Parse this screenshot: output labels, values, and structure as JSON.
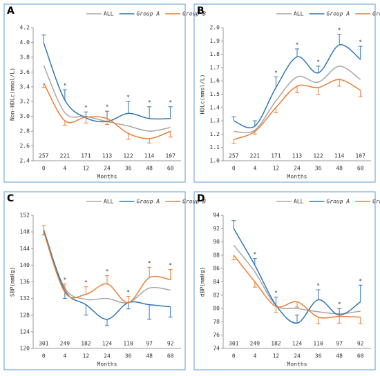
{
  "chart_data": [
    {
      "type": "line",
      "panel": "A",
      "ylabel": "Non-HDLc(mmol/L)",
      "xlabel": "Months",
      "categories": [
        "0",
        "4",
        "12",
        "24",
        "36",
        "48",
        "60"
      ],
      "n": [
        257,
        221,
        171,
        113,
        122,
        114,
        107
      ],
      "significance_marker": "*",
      "significant": [
        false,
        true,
        true,
        true,
        true,
        true,
        true
      ],
      "ylim": [
        2.4,
        4.2
      ],
      "yticks": [
        2.4,
        2.6,
        2.8,
        {
          "value": 3,
          "label": "3.0"
        },
        3.2,
        3.4,
        3.6,
        3.8,
        {
          "value": 4,
          "label": "4.0"
        },
        4.2
      ],
      "series": [
        {
          "name": "ALL",
          "color": "#a6a6a6",
          "values": [
            3.69,
            3.05,
            3.0,
            2.93,
            2.87,
            2.8,
            2.85
          ]
        },
        {
          "name": "Group A",
          "color": "#2e75b6",
          "values": [
            3.99,
            3.22,
            2.98,
            2.93,
            3.04,
            2.97,
            2.97
          ],
          "errors": [
            0.11,
            0.14,
            0.08,
            0.14,
            0.16,
            0.16,
            0.16
          ],
          "error_direction": "up"
        },
        {
          "name": "Group B",
          "color": "#ed7d31",
          "values": [
            3.45,
            2.94,
            2.99,
            2.97,
            2.77,
            2.7,
            2.8
          ],
          "errors": [
            0.06,
            0.06,
            0.08,
            0.08,
            0.08,
            0.06,
            0.08
          ],
          "error_direction": "down"
        }
      ]
    },
    {
      "type": "line",
      "panel": "B",
      "ylabel": "HDLc(mmol/L)",
      "xlabel": "Months",
      "categories": [
        "0",
        "4",
        "12",
        "24",
        "36",
        "48",
        "60"
      ],
      "n": [
        257,
        221,
        171,
        113,
        122,
        114,
        107
      ],
      "significance_marker": "*",
      "significant": [
        false,
        false,
        true,
        true,
        true,
        true,
        true
      ],
      "ylim": [
        1.0,
        2.0
      ],
      "yticks": [
        {
          "value": 1,
          "label": "1.0"
        },
        1.1,
        1.2,
        1.3,
        1.4,
        1.5,
        1.6,
        1.7,
        1.8,
        1.9,
        {
          "value": 2,
          "label": "2.0"
        }
      ],
      "series": [
        {
          "name": "ALL",
          "color": "#a6a6a6",
          "values": [
            1.22,
            1.23,
            1.45,
            1.63,
            1.59,
            1.71,
            1.61
          ]
        },
        {
          "name": "Group A",
          "color": "#2e75b6",
          "values": [
            1.3,
            1.26,
            1.55,
            1.78,
            1.66,
            1.87,
            1.76
          ],
          "errors": [
            0.03,
            0.04,
            0.08,
            0.06,
            0.05,
            0.08,
            0.1
          ],
          "error_direction": "up"
        },
        {
          "name": "Group B",
          "color": "#ed7d31",
          "values": [
            1.16,
            1.22,
            1.4,
            1.56,
            1.55,
            1.61,
            1.53
          ],
          "errors": [
            0.03,
            0.02,
            0.04,
            0.05,
            0.05,
            0.05,
            0.05
          ],
          "error_direction": "down"
        }
      ]
    },
    {
      "type": "line",
      "panel": "C",
      "ylabel": "SBP(mmHg)",
      "xlabel": "Months",
      "categories": [
        "0",
        "4",
        "12",
        "24",
        "36",
        "48",
        "60"
      ],
      "n": [
        301,
        249,
        182,
        124,
        110,
        97,
        92
      ],
      "significance_marker": "*",
      "significant": [
        false,
        true,
        true,
        true,
        true,
        true,
        true
      ],
      "ylim": [
        120,
        152
      ],
      "yticks": [
        120,
        124,
        128,
        132,
        136,
        140,
        144,
        148,
        152
      ],
      "series": [
        {
          "name": "ALL",
          "color": "#a6a6a6",
          "values": [
            148,
            134.5,
            131.8,
            132,
            131,
            134.5,
            134
          ]
        },
        {
          "name": "Group A",
          "color": "#2e75b6",
          "values": [
            148.5,
            134,
            130.5,
            127,
            131,
            130.5,
            130
          ],
          "errors": [
            1.2,
            2.0,
            2.5,
            1.5,
            1.5,
            3.5,
            2.5
          ],
          "error_direction": "down"
        },
        {
          "name": "Group B",
          "color": "#ed7d31",
          "values": [
            148,
            133.5,
            133,
            135.5,
            131,
            137,
            136.5
          ],
          "errors": [
            1.5,
            2.0,
            1.8,
            2.0,
            1.5,
            2.5,
            2.5
          ],
          "error_direction": "up"
        }
      ]
    },
    {
      "type": "line",
      "panel": "D",
      "ylabel": "dBP(mmHg)",
      "xlabel": "Months",
      "categories": [
        "0",
        "4",
        "12",
        "24",
        "36",
        "48",
        "60"
      ],
      "n": [
        301,
        249,
        182,
        124,
        110,
        97,
        92
      ],
      "significance_marker": "*",
      "significant": [
        false,
        true,
        true,
        false,
        true,
        true,
        true
      ],
      "ylim": [
        74,
        94
      ],
      "yticks": [
        74,
        76,
        78,
        80,
        82,
        84,
        86,
        88,
        90,
        92,
        94
      ],
      "series": [
        {
          "name": "ALL",
          "color": "#a6a6a6",
          "values": [
            89.5,
            85.5,
            80.5,
            80,
            79.5,
            79.2,
            79.6
          ]
        },
        {
          "name": "Group A",
          "color": "#2e75b6",
          "values": [
            92,
            86.5,
            80.5,
            77.8,
            81.3,
            79,
            81
          ],
          "errors": [
            1.2,
            1.0,
            1.2,
            1.2,
            1.5,
            1.0,
            2.5
          ],
          "error_direction": "up"
        },
        {
          "name": "Group B",
          "color": "#ed7d31",
          "values": [
            88,
            84,
            80.3,
            81,
            78.7,
            78.8,
            78.7
          ],
          "errors": [
            0.7,
            0.8,
            0.9,
            0.8,
            1.0,
            1.0,
            1.0
          ],
          "error_direction": "down"
        }
      ]
    }
  ]
}
